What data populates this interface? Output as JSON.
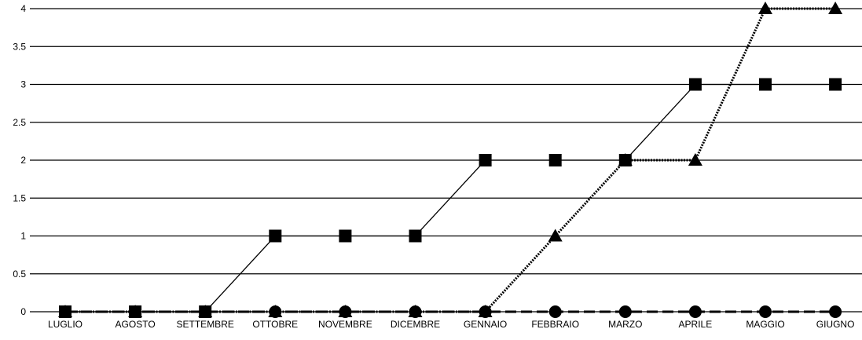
{
  "chart_data": {
    "type": "line",
    "title": "",
    "xlabel": "",
    "ylabel": "",
    "categories": [
      "LUGLIO",
      "AGOSTO",
      "SETTEMBRE",
      "OTTOBRE",
      "NOVEMBRE",
      "DICEMBRE",
      "GENNAIO",
      "FEBBRAIO",
      "MARZO",
      "APRILE",
      "MAGGIO",
      "GIUGNO"
    ],
    "ylim": [
      0,
      4
    ],
    "yticks": [
      "0",
      "0.5",
      "1",
      "1.5",
      "2",
      "2.5",
      "3",
      "3.5",
      "4"
    ],
    "grid": true,
    "legend": "none",
    "series": [
      {
        "marker": "square",
        "line_style": "solid",
        "values": [
          0,
          0,
          0,
          1,
          1,
          1,
          2,
          2,
          2,
          3,
          3,
          3
        ]
      },
      {
        "marker": "triangle",
        "line_style": "dotted",
        "values": [
          0,
          0,
          0,
          0,
          0,
          0,
          0,
          1,
          2,
          2,
          4,
          4
        ]
      },
      {
        "marker": "circle",
        "line_style": "dashed",
        "values": [
          0,
          0,
          0,
          0,
          0,
          0,
          0,
          0,
          0,
          0,
          0,
          0
        ]
      }
    ],
    "colors": {
      "line": "#000000",
      "background": "#ffffff"
    }
  }
}
